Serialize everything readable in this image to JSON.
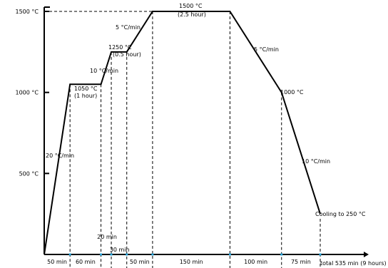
{
  "chart_data": {
    "type": "line",
    "title": "",
    "xlabel": "",
    "ylabel": "",
    "x_unit": "min",
    "y_unit": "°C",
    "ylim": [
      0,
      1500
    ],
    "xlim": [
      0,
      550
    ],
    "grid": false,
    "series": [
      {
        "name": "",
        "points": [
          {
            "x": 0,
            "y": 0
          },
          {
            "x": 50,
            "y": 1050
          },
          {
            "x": 110,
            "y": 1050
          },
          {
            "x": 130,
            "y": 1250
          },
          {
            "x": 160,
            "y": 1250
          },
          {
            "x": 210,
            "y": 1500
          },
          {
            "x": 360,
            "y": 1500
          },
          {
            "x": 460,
            "y": 1000
          },
          {
            "x": 535,
            "y": 250
          }
        ]
      }
    ],
    "y_ticks": [
      {
        "value": 1500,
        "label": "1500 °C"
      },
      {
        "value": 1000,
        "label": "1000 °C"
      },
      {
        "value": 500,
        "label": "500 °C"
      }
    ],
    "x_markers": [
      50,
      110,
      130,
      160,
      210,
      360,
      460,
      535
    ],
    "segment_labels": [
      {
        "from": 0,
        "to": 50,
        "label": "50 min"
      },
      {
        "from": 50,
        "to": 110,
        "label": "60 min"
      },
      {
        "from": 110,
        "to": 130,
        "label": "20 min"
      },
      {
        "from": 130,
        "to": 160,
        "label": "30 min"
      },
      {
        "from": 160,
        "to": 210,
        "label": "50 min"
      },
      {
        "from": 210,
        "to": 360,
        "label": "150 min"
      },
      {
        "from": 360,
        "to": 460,
        "label": "100 min"
      },
      {
        "from": 460,
        "to": 535,
        "label": "75 min"
      }
    ],
    "total_label": "total 535 min (9 hours)",
    "annotations": [
      {
        "text": "20 °C/min",
        "x": 0,
        "y": 0
      },
      {
        "text": "1050 °C",
        "x": 80,
        "y": 1050
      },
      {
        "text": "(1 hour)",
        "x": 80,
        "y": 1050
      },
      {
        "text": "10 °C/min",
        "x": 120,
        "y": 1150
      },
      {
        "text": "1250 °C",
        "x": 145,
        "y": 1250
      },
      {
        "text": "(0.5 hour)",
        "x": 145,
        "y": 1250
      },
      {
        "text": "5 °C/min",
        "x": 185,
        "y": 1375
      },
      {
        "text": "1500 °C",
        "x": 285,
        "y": 1500
      },
      {
        "text": "(2.5 hour)",
        "x": 285,
        "y": 1500
      },
      {
        "text": "5 °C/min",
        "x": 410,
        "y": 1250
      },
      {
        "text": "1000 °C",
        "x": 460,
        "y": 1000
      },
      {
        "text": "10 °C/min",
        "x": 497,
        "y": 625
      },
      {
        "text": "Cooling to 250 °C",
        "x": 535,
        "y": 250
      }
    ]
  }
}
